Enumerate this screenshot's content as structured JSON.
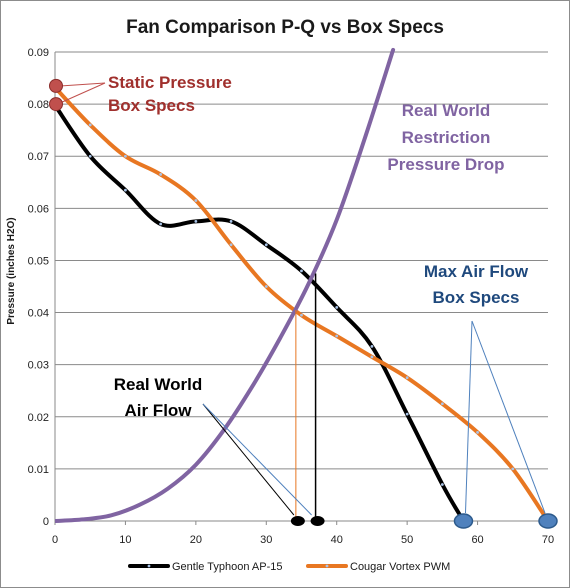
{
  "chart_data": {
    "type": "line",
    "title": "Fan Comparison P-Q vs Box Specs",
    "xlabel": "",
    "ylabel": "Pressure (inches H2O)",
    "xlim": [
      0,
      70
    ],
    "ylim": [
      0,
      0.09
    ],
    "x_ticks": [
      "0",
      "10",
      "20",
      "30",
      "40",
      "50",
      "60",
      "70"
    ],
    "y_ticks": [
      "0",
      "0.01",
      "0.02",
      "0.03",
      "0.04",
      "0.05",
      "0.06",
      "0.07",
      "0.08",
      "0.09"
    ],
    "grid": true,
    "legend_position": "bottom",
    "series": [
      {
        "name": "Gentle Typhoon AP-15",
        "color": "#000000",
        "x": [
          0,
          5,
          10,
          15,
          20,
          25,
          30,
          35,
          40,
          45,
          50,
          55,
          58
        ],
        "y": [
          0.0798,
          0.07,
          0.0635,
          0.057,
          0.0575,
          0.0575,
          0.053,
          0.048,
          0.041,
          0.0335,
          0.0205,
          0.007,
          0
        ]
      },
      {
        "name": "Cougar Vortex PWM",
        "color": "#e87722",
        "x": [
          0,
          5,
          10,
          15,
          20,
          25,
          30,
          35,
          40,
          45,
          50,
          55,
          60,
          65,
          70
        ],
        "y": [
          0.0832,
          0.076,
          0.07,
          0.0665,
          0.0615,
          0.053,
          0.045,
          0.0395,
          0.0355,
          0.0315,
          0.0275,
          0.0225,
          0.017,
          0.01,
          0
        ]
      },
      {
        "name": "Real World Restriction Pressure Drop",
        "color": "#8064a2",
        "x": [
          0,
          4,
          8,
          12,
          16,
          20,
          24,
          28,
          32,
          36,
          40,
          44,
          48
        ],
        "y": [
          0,
          0.0003,
          0.0011,
          0.0031,
          0.0062,
          0.0108,
          0.0175,
          0.0258,
          0.0352,
          0.0455,
          0.0578,
          0.0735,
          0.0904
        ]
      }
    ],
    "points": {
      "static_pressure": [
        {
          "x": 0,
          "y": 0.0835,
          "color": "#c0504d"
        },
        {
          "x": 0,
          "y": 0.08,
          "color": "#c0504d"
        }
      ],
      "max_air_flow": [
        {
          "x": 58,
          "y": 0,
          "color": "#4f81bd"
        },
        {
          "x": 70,
          "y": 0,
          "color": "#4f81bd"
        }
      ],
      "real_world_air_flow": [
        {
          "x": 34.2,
          "y": 0,
          "color": "#000000"
        },
        {
          "x": 37,
          "y": 0,
          "color": "#000000"
        }
      ]
    },
    "intersections": [
      {
        "x": 34.2,
        "y": 0.0405,
        "color": "#e87722"
      },
      {
        "x": 37,
        "y": 0.0475,
        "color": "#000000"
      }
    ],
    "annotations": [
      {
        "id": "static",
        "lines": [
          "Static Pressure",
          "Box Specs"
        ],
        "color": "#a0302d"
      },
      {
        "id": "restriction",
        "lines": [
          "Real World",
          "Restriction",
          "Pressure Drop"
        ],
        "color": "#8064a2"
      },
      {
        "id": "maxflow",
        "lines": [
          "Max Air Flow",
          "Box Specs"
        ],
        "color": "#1f497d"
      },
      {
        "id": "realflow",
        "lines": [
          "Real World",
          "Air Flow"
        ],
        "color": "#000000"
      }
    ]
  }
}
